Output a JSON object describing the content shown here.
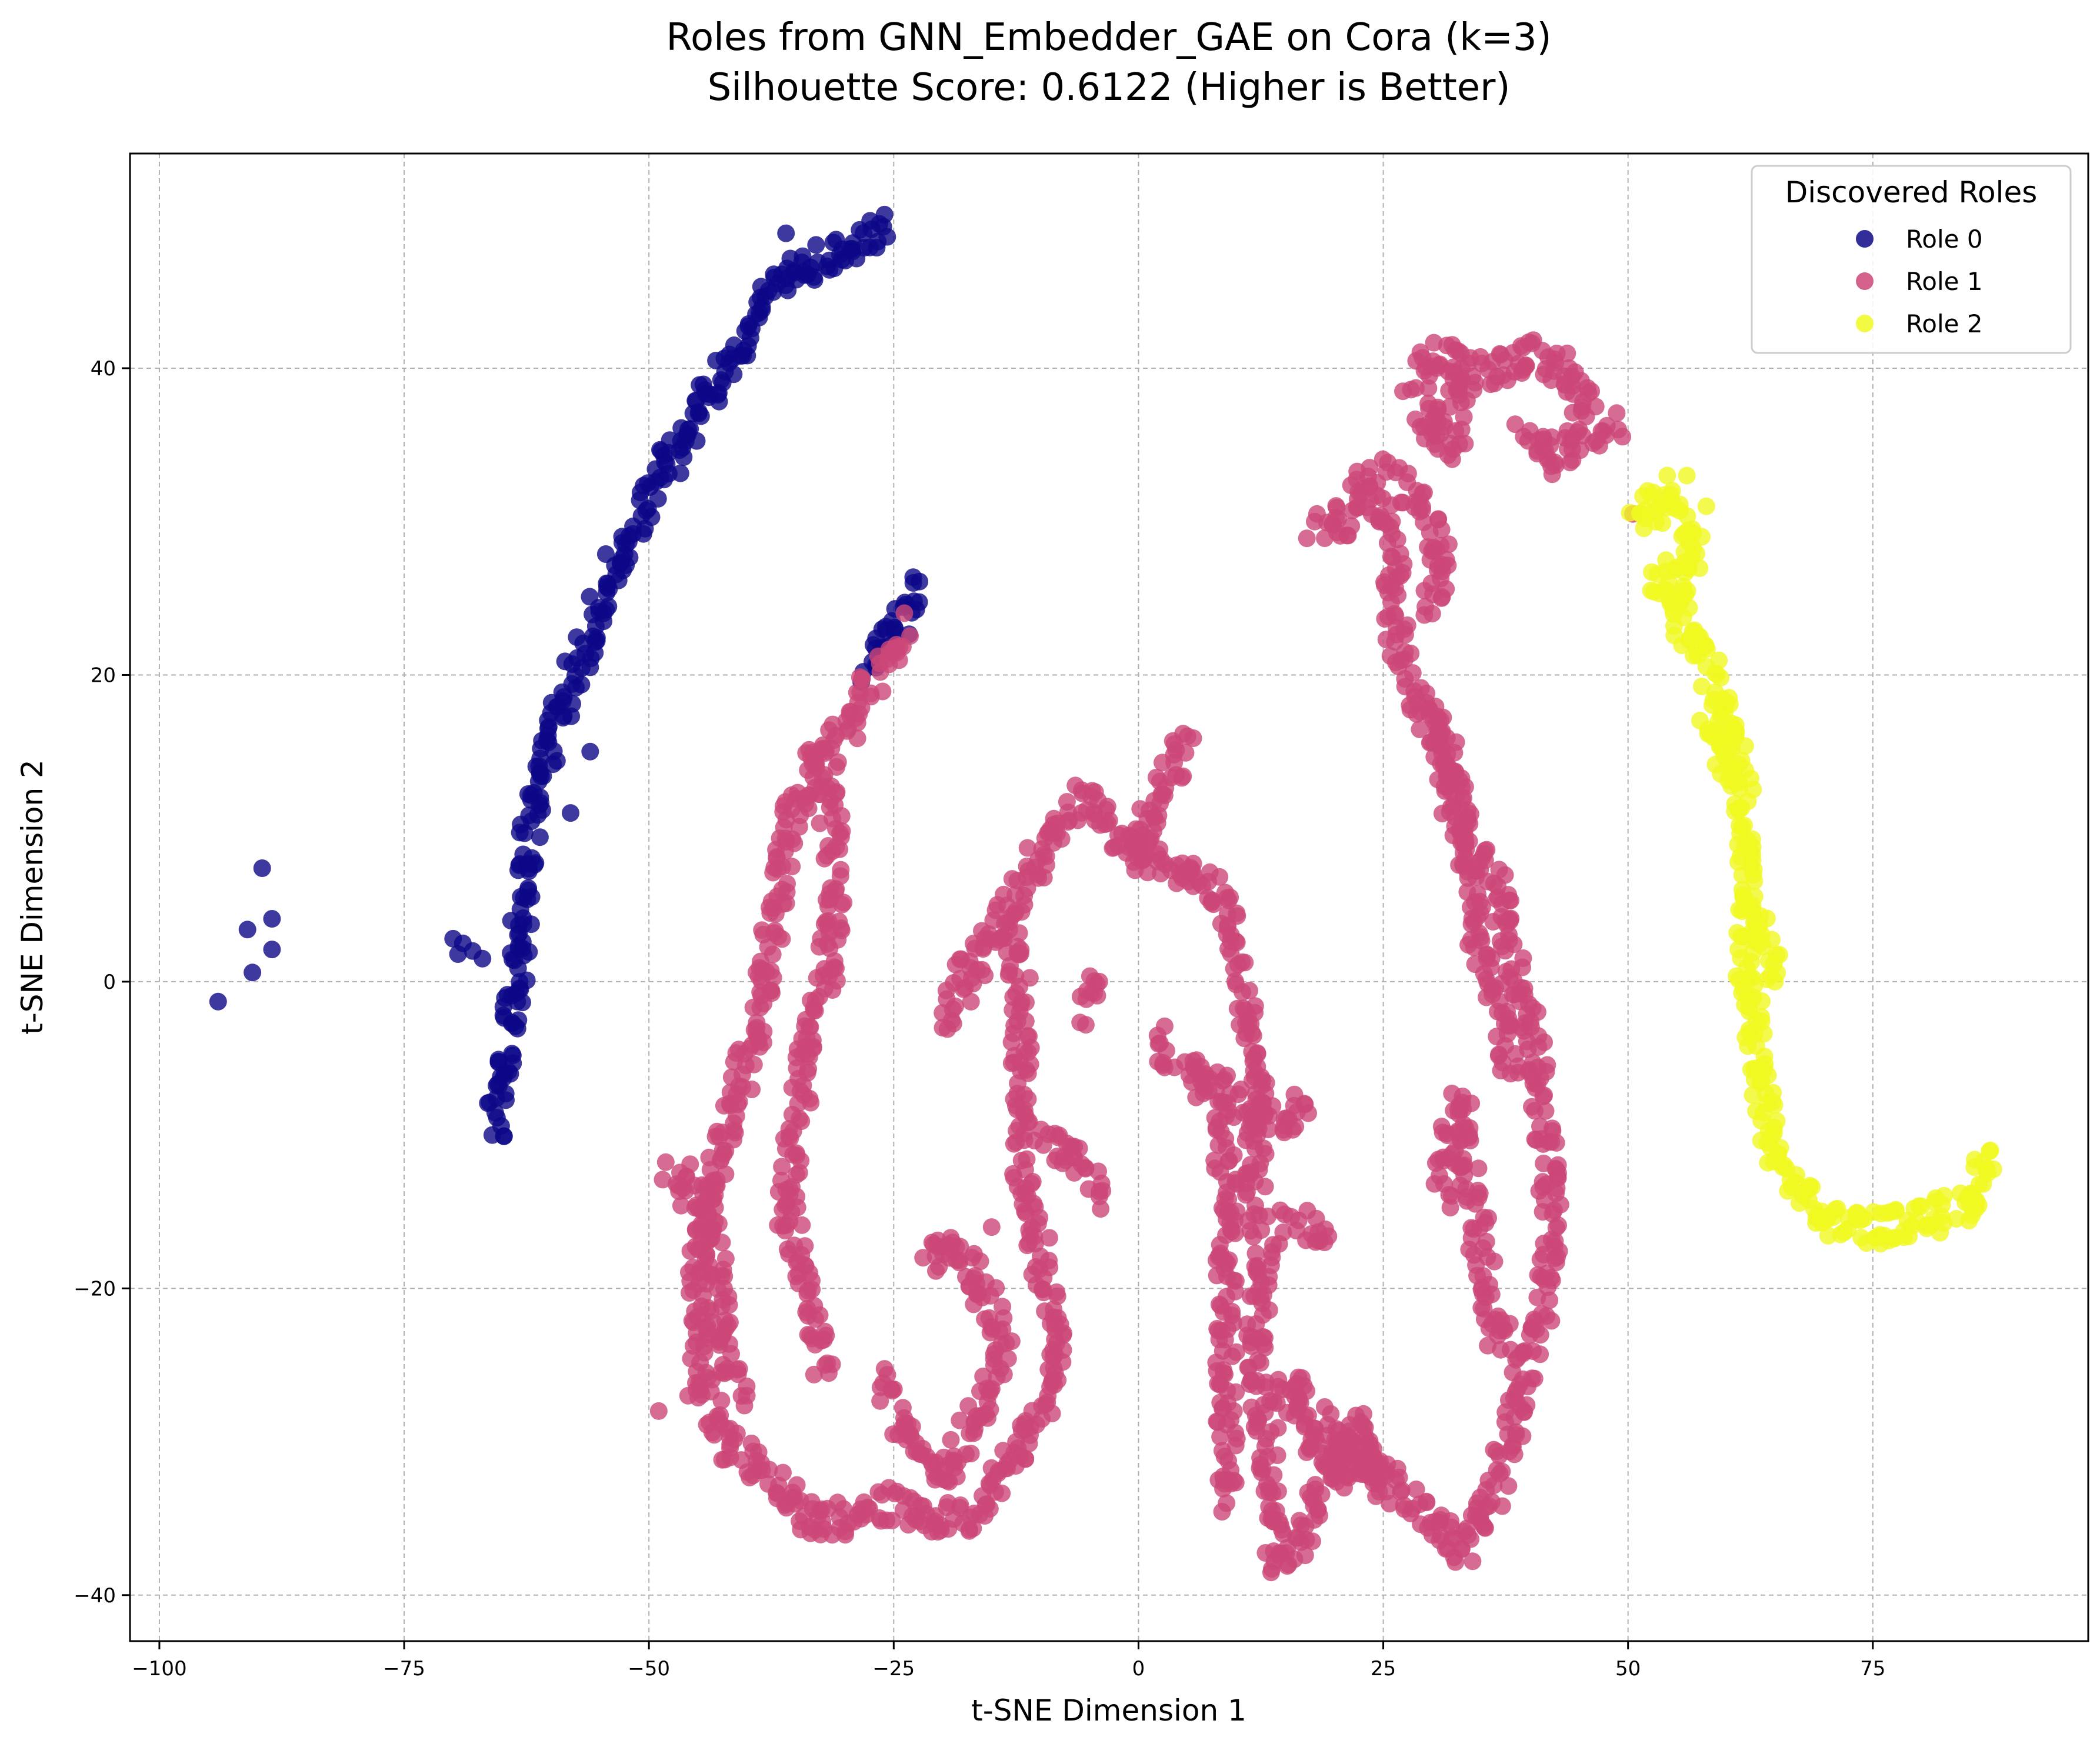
{
  "chart_data": {
    "type": "scatter",
    "title_lines": [
      "Roles from GNN_Embedder_GAE on Cora (k=3)",
      "Silhouette Score: 0.6122 (Higher is Better)"
    ],
    "xlabel": "t-SNE Dimension 1",
    "ylabel": "t-SNE Dimension 2",
    "xlim": [
      -103,
      97
    ],
    "ylim": [
      -43,
      54
    ],
    "xticks": [
      -100,
      -75,
      -50,
      -25,
      0,
      25,
      50,
      75
    ],
    "yticks": [
      -40,
      -20,
      0,
      20,
      40
    ],
    "grid": true,
    "legend": {
      "title": "Discovered Roles",
      "position": "top-right"
    },
    "series": [
      {
        "name": "Role 0",
        "color": "#0d0887",
        "paths": [
          [
            [
              -26,
              49
            ],
            [
              -29,
              48
            ],
            [
              -33,
              47
            ],
            [
              -36,
              46
            ],
            [
              -38,
              44
            ],
            [
              -40,
              42
            ],
            [
              -42,
              40
            ],
            [
              -45,
              37
            ],
            [
              -48,
              34
            ],
            [
              -51,
              30
            ],
            [
              -54,
              26
            ],
            [
              -57,
              21
            ],
            [
              -60,
              16
            ],
            [
              -62,
              11
            ],
            [
              -63,
              6
            ],
            [
              -63,
              2
            ],
            [
              -64,
              -2
            ],
            [
              -65,
              -6
            ],
            [
              -66,
              -10
            ]
          ],
          [
            [
              -28,
              20
            ],
            [
              -26,
              22
            ],
            [
              -24,
              24
            ],
            [
              -23,
              26
            ]
          ]
        ],
        "clusters": [
          [
            [
              -94,
              -1.3
            ],
            [
              -91,
              3.4
            ],
            [
              -89.5,
              7.4
            ],
            [
              -88.5,
              4.1
            ],
            [
              -88.5,
              2.1
            ],
            [
              -90.5,
              0.6
            ]
          ],
          [
            [
              -69,
              2.5
            ],
            [
              -68,
              2.0
            ],
            [
              -70,
              2.8
            ],
            [
              -67,
              1.5
            ],
            [
              -69.5,
              1.8
            ]
          ],
          [
            [
              -36,
              48.8
            ],
            [
              -56,
              20.5
            ],
            [
              -58,
              11
            ],
            [
              -56,
              15
            ]
          ]
        ]
      },
      {
        "name": "Role 1",
        "color": "#cc4778",
        "paths": [
          [
            [
              -24,
              23
            ],
            [
              -27,
              20
            ],
            [
              -30,
              16
            ],
            [
              -33,
              14
            ],
            [
              -36,
              10
            ],
            [
              -37,
              5
            ],
            [
              -38,
              0
            ],
            [
              -40,
              -5
            ],
            [
              -42,
              -10
            ],
            [
              -44,
              -14
            ],
            [
              -45,
              -20
            ],
            [
              -45,
              -26
            ],
            [
              -42,
              -30
            ],
            [
              -38,
              -32
            ],
            [
              -34,
              -35
            ],
            [
              -30,
              -35
            ],
            [
              -26,
              -34
            ],
            [
              -22,
              -35
            ],
            [
              -18,
              -35
            ],
            [
              -14,
              -32
            ],
            [
              -10,
              -28
            ],
            [
              -8,
              -24
            ],
            [
              -10,
              -18
            ],
            [
              -12,
              -12
            ],
            [
              -12,
              -6
            ],
            [
              -12,
              0
            ],
            [
              -14,
              4
            ],
            [
              -10,
              8
            ],
            [
              -6,
              12
            ],
            [
              -3,
              10
            ],
            [
              0,
              8
            ],
            [
              2,
              12
            ],
            [
              5,
              16
            ]
          ],
          [
            [
              -33,
              15
            ],
            [
              -31,
              10
            ],
            [
              -31,
              5
            ],
            [
              -32,
              0
            ],
            [
              -34,
              -5
            ],
            [
              -35,
              -10
            ],
            [
              -36,
              -15
            ],
            [
              -34,
              -20
            ],
            [
              -32,
              -25
            ]
          ],
          [
            [
              -48,
              -12
            ],
            [
              -44,
              -15
            ],
            [
              -42,
              -25
            ],
            [
              -40,
              -27
            ]
          ],
          [
            [
              -26,
              -26
            ],
            [
              -24,
              -30
            ],
            [
              -20,
              -32
            ],
            [
              -16,
              -28
            ],
            [
              -14,
              -24
            ],
            [
              -16,
              -20
            ],
            [
              -20,
              -17
            ],
            [
              -22,
              -18
            ]
          ],
          [
            [
              -14,
              4
            ],
            [
              -16,
              2
            ],
            [
              -18,
              0
            ],
            [
              -20,
              -3
            ]
          ],
          [
            [
              -10,
              -10
            ],
            [
              -6,
              -12
            ],
            [
              -4,
              -14
            ]
          ],
          [
            [
              -6,
              -2
            ],
            [
              -4,
              0
            ]
          ],
          [
            [
              0,
              8
            ],
            [
              3,
              8
            ],
            [
              6,
              7
            ],
            [
              8,
              6
            ],
            [
              10,
              2
            ],
            [
              11,
              -2
            ],
            [
              12,
              -6
            ],
            [
              12,
              -10
            ],
            [
              12,
              -14
            ],
            [
              13,
              -18
            ],
            [
              12,
              -22
            ],
            [
              12,
              -26
            ],
            [
              13,
              -30
            ],
            [
              14,
              -35
            ],
            [
              14,
              -38
            ],
            [
              17,
              -36
            ],
            [
              19,
              -33
            ],
            [
              21,
              -30
            ],
            [
              24,
              -32
            ],
            [
              28,
              -34
            ],
            [
              31,
              -36
            ],
            [
              33,
              -37
            ]
          ],
          [
            [
              2,
              -4
            ],
            [
              5,
              -6
            ],
            [
              8,
              -7
            ],
            [
              11,
              -8
            ],
            [
              14,
              -9
            ],
            [
              17,
              -8
            ]
          ],
          [
            [
              8,
              -8
            ],
            [
              9,
              -13
            ],
            [
              9,
              -18
            ],
            [
              9,
              -24
            ],
            [
              9,
              -30
            ],
            [
              9,
              -34
            ]
          ],
          [
            [
              14,
              -28
            ],
            [
              16,
              -26
            ],
            [
              18,
              -30
            ],
            [
              21,
              -32
            ],
            [
              24,
              -31
            ]
          ],
          [
            [
              15,
              -16
            ],
            [
              17,
              -16
            ],
            [
              19,
              -17
            ]
          ],
          [
            [
              18,
              -28
            ],
            [
              20,
              -30
            ],
            [
              22,
              -29
            ],
            [
              25,
              -32
            ]
          ],
          [
            [
              33,
              -37
            ],
            [
              36,
              -34
            ],
            [
              38,
              -30
            ],
            [
              39,
              -26
            ],
            [
              41,
              -22
            ],
            [
              42,
              -18
            ],
            [
              42,
              -12
            ],
            [
              41,
              -8
            ],
            [
              40,
              -2
            ],
            [
              38,
              2
            ],
            [
              37,
              6
            ],
            [
              34,
              9
            ],
            [
              32,
              14
            ],
            [
              30,
              17
            ],
            [
              27,
              20
            ],
            [
              26,
              25
            ],
            [
              26,
              28
            ],
            [
              25,
              30
            ],
            [
              23,
              33
            ],
            [
              21,
              30
            ],
            [
              18,
              30
            ]
          ],
          [
            [
              31,
              -14
            ],
            [
              32,
              -10
            ],
            [
              33,
              -8
            ],
            [
              34,
              -13
            ],
            [
              35,
              -18
            ],
            [
              36,
              -22
            ],
            [
              38,
              -24
            ]
          ],
          [
            [
              30,
              18
            ],
            [
              31,
              14
            ],
            [
              33,
              10
            ],
            [
              34,
              6
            ],
            [
              35,
              2
            ],
            [
              37,
              -2
            ],
            [
              38,
              -6
            ]
          ],
          [
            [
              26,
              33
            ],
            [
              28,
              32
            ],
            [
              30,
              30
            ],
            [
              31,
              27
            ],
            [
              30,
              24
            ]
          ],
          [
            [
              30,
              36
            ],
            [
              32,
              38
            ],
            [
              34,
              40
            ],
            [
              37,
              40
            ],
            [
              40,
              41
            ],
            [
              43,
              40
            ],
            [
              45,
              38
            ],
            [
              47,
              36
            ],
            [
              49,
              36
            ]
          ],
          [
            [
              28,
              39
            ],
            [
              30,
              41
            ],
            [
              33,
              40
            ]
          ],
          [
            [
              39,
              36
            ],
            [
              41,
              35
            ],
            [
              43,
              34
            ],
            [
              45,
              36
            ]
          ],
          [
            [
              29,
              37
            ],
            [
              31,
              35
            ],
            [
              33,
              36
            ]
          ]
        ],
        "clusters": [
          [
            [
              50.5,
              30.5
            ]
          ],
          [
            [
              -19,
              -17
            ],
            [
              -17,
              -18
            ],
            [
              -15,
              -16
            ]
          ],
          [
            [
              -49,
              -28
            ],
            [
              -46,
              -27
            ],
            [
              -44,
              -23
            ]
          ],
          [
            [
              22,
              -30
            ],
            [
              23,
              -29
            ],
            [
              21,
              -33
            ]
          ]
        ]
      },
      {
        "name": "Role 2",
        "color": "#f0f921",
        "paths": [
          [
            [
              51,
              30
            ],
            [
              53,
              31
            ],
            [
              55,
              31
            ],
            [
              56,
              30
            ],
            [
              57,
              28
            ],
            [
              56,
              26
            ],
            [
              55,
              25
            ],
            [
              56,
              23
            ],
            [
              58,
              21
            ],
            [
              59,
              19
            ],
            [
              60,
              17
            ],
            [
              61,
              15
            ],
            [
              62,
              12
            ],
            [
              62,
              8
            ],
            [
              62,
              4
            ],
            [
              62,
              0
            ],
            [
              63,
              -3
            ],
            [
              63,
              -6
            ],
            [
              64,
              -9
            ],
            [
              65,
              -11
            ],
            [
              67,
              -13
            ],
            [
              69,
              -15
            ],
            [
              71,
              -15.5
            ],
            [
              74,
              -16
            ],
            [
              77,
              -16
            ],
            [
              80,
              -15.5
            ],
            [
              83,
              -15
            ],
            [
              85,
              -14
            ],
            [
              86,
              -13
            ],
            [
              87,
              -11
            ]
          ],
          [
            [
              54,
              27
            ],
            [
              53,
              26
            ],
            [
              54,
              25.5
            ]
          ],
          [
            [
              58,
              17
            ],
            [
              60,
              15
            ],
            [
              61,
              13
            ]
          ],
          [
            [
              63,
              4
            ],
            [
              64,
              2
            ],
            [
              65,
              0
            ]
          ]
        ],
        "clusters": [
          [
            [
              52,
              32
            ],
            [
              54,
              33
            ],
            [
              56,
              33
            ],
            [
              58,
              31
            ]
          ]
        ]
      }
    ]
  }
}
